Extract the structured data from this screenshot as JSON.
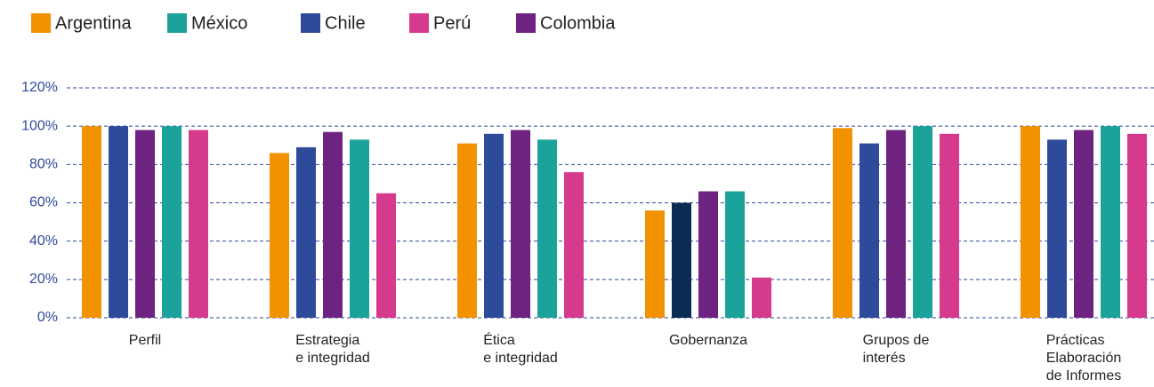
{
  "chart_data": {
    "type": "bar",
    "categories": [
      "Perfil",
      "Estrategia\ne integridad",
      "Ética\ne integridad",
      "Gobernanza",
      "Grupos de\ninterés",
      "Prácticas\nElaboración\nde Informes"
    ],
    "series": [
      {
        "name": "Argentina",
        "color": "#f39200",
        "values": [
          100,
          86,
          91,
          56,
          99,
          100
        ]
      },
      {
        "name": "México",
        "color": "#1ba39b",
        "values": [
          100,
          93,
          93,
          66,
          100,
          100
        ]
      },
      {
        "name": "Chile",
        "color": "#2e4a9a",
        "colors": [
          "#2e4a9a",
          "#2e4a9a",
          "#2e4a9a",
          "#0c2b52",
          "#2e4a9a",
          "#2e4a9a"
        ],
        "values": [
          100,
          89,
          96,
          60,
          91,
          93
        ]
      },
      {
        "name": "Perú",
        "color": "#d63a8c",
        "values": [
          98,
          65,
          76,
          21,
          96,
          96
        ]
      },
      {
        "name": "Colombia",
        "color": "#6e2380",
        "values": [
          98,
          97,
          98,
          66,
          98,
          98
        ]
      }
    ],
    "ylim": [
      0,
      120
    ],
    "yticks": [
      {
        "value": 0,
        "label": "0%"
      },
      {
        "value": 20,
        "label": "20%"
      },
      {
        "value": 40,
        "label": "40%"
      },
      {
        "value": 60,
        "label": "60%"
      },
      {
        "value": 80,
        "label": "80%"
      },
      {
        "value": 100,
        "label": "100%"
      },
      {
        "value": 120,
        "label": "120%"
      }
    ],
    "grid": true
  }
}
